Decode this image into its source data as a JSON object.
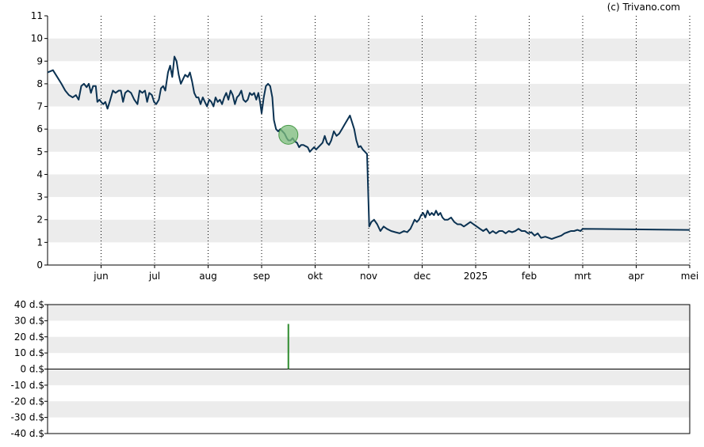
{
  "credit": "(c) Trivano.com",
  "colors": {
    "price_line": "#0b3252",
    "band": "#ececec",
    "grid": "#000000",
    "marker_fill": "#7fbf7f",
    "marker_stroke": "#4a9a4a",
    "bar": "#2e8b2e"
  },
  "chart_data": [
    {
      "type": "line",
      "name": "price",
      "ylim": [
        0,
        11
      ],
      "yticks": [
        "0",
        "1",
        "2",
        "3",
        "4",
        "5",
        "6",
        "7",
        "8",
        "9",
        "10",
        "11"
      ],
      "xlim": [
        0,
        12
      ],
      "xticks": [
        {
          "label": "jun",
          "x": 1
        },
        {
          "label": "jul",
          "x": 2
        },
        {
          "label": "aug",
          "x": 3
        },
        {
          "label": "sep",
          "x": 4
        },
        {
          "label": "okt",
          "x": 5
        },
        {
          "label": "nov",
          "x": 6
        },
        {
          "label": "dec",
          "x": 7
        },
        {
          "label": "2025",
          "x": 8
        },
        {
          "label": "feb",
          "x": 9
        },
        {
          "label": "mrt",
          "x": 10
        },
        {
          "label": "apr",
          "x": 11
        },
        {
          "label": "mei",
          "x": 12
        }
      ],
      "grid": "vertical dotted lines at month ticks, alternating horizontal bands",
      "series": [
        {
          "points": [
            [
              0.0,
              8.5
            ],
            [
              0.1,
              8.6
            ],
            [
              0.18,
              8.3
            ],
            [
              0.26,
              8.0
            ],
            [
              0.33,
              7.7
            ],
            [
              0.4,
              7.5
            ],
            [
              0.47,
              7.4
            ],
            [
              0.53,
              7.5
            ],
            [
              0.58,
              7.3
            ],
            [
              0.63,
              7.9
            ],
            [
              0.68,
              8.0
            ],
            [
              0.73,
              7.85
            ],
            [
              0.77,
              8.0
            ],
            [
              0.81,
              7.6
            ],
            [
              0.85,
              7.9
            ],
            [
              0.9,
              7.9
            ],
            [
              0.93,
              7.2
            ],
            [
              0.97,
              7.3
            ],
            [
              1.0,
              7.2
            ],
            [
              1.04,
              7.1
            ],
            [
              1.08,
              7.2
            ],
            [
              1.12,
              6.9
            ],
            [
              1.16,
              7.2
            ],
            [
              1.22,
              7.7
            ],
            [
              1.27,
              7.6
            ],
            [
              1.33,
              7.7
            ],
            [
              1.37,
              7.7
            ],
            [
              1.41,
              7.2
            ],
            [
              1.45,
              7.6
            ],
            [
              1.5,
              7.7
            ],
            [
              1.56,
              7.6
            ],
            [
              1.62,
              7.3
            ],
            [
              1.68,
              7.1
            ],
            [
              1.72,
              7.7
            ],
            [
              1.77,
              7.6
            ],
            [
              1.82,
              7.7
            ],
            [
              1.86,
              7.2
            ],
            [
              1.9,
              7.6
            ],
            [
              1.95,
              7.5
            ],
            [
              1.99,
              7.2
            ],
            [
              2.03,
              7.1
            ],
            [
              2.08,
              7.3
            ],
            [
              2.12,
              7.8
            ],
            [
              2.16,
              7.9
            ],
            [
              2.2,
              7.7
            ],
            [
              2.25,
              8.5
            ],
            [
              2.29,
              8.8
            ],
            [
              2.33,
              8.3
            ],
            [
              2.37,
              9.2
            ],
            [
              2.41,
              9.0
            ],
            [
              2.45,
              8.4
            ],
            [
              2.49,
              8.0
            ],
            [
              2.53,
              8.2
            ],
            [
              2.57,
              8.4
            ],
            [
              2.62,
              8.3
            ],
            [
              2.66,
              8.5
            ],
            [
              2.7,
              8.1
            ],
            [
              2.74,
              7.6
            ],
            [
              2.78,
              7.4
            ],
            [
              2.82,
              7.4
            ],
            [
              2.86,
              7.1
            ],
            [
              2.9,
              7.4
            ],
            [
              2.94,
              7.2
            ],
            [
              2.98,
              7.0
            ],
            [
              3.02,
              7.3
            ],
            [
              3.06,
              7.2
            ],
            [
              3.1,
              7.0
            ],
            [
              3.14,
              7.4
            ],
            [
              3.18,
              7.2
            ],
            [
              3.22,
              7.3
            ],
            [
              3.26,
              7.1
            ],
            [
              3.3,
              7.4
            ],
            [
              3.34,
              7.6
            ],
            [
              3.38,
              7.3
            ],
            [
              3.42,
              7.7
            ],
            [
              3.46,
              7.5
            ],
            [
              3.5,
              7.1
            ],
            [
              3.54,
              7.4
            ],
            [
              3.58,
              7.5
            ],
            [
              3.62,
              7.7
            ],
            [
              3.66,
              7.3
            ],
            [
              3.7,
              7.2
            ],
            [
              3.74,
              7.3
            ],
            [
              3.78,
              7.6
            ],
            [
              3.82,
              7.5
            ],
            [
              3.86,
              7.6
            ],
            [
              3.9,
              7.3
            ],
            [
              3.94,
              7.6
            ],
            [
              3.97,
              7.2
            ],
            [
              4.0,
              6.7
            ],
            [
              4.04,
              7.4
            ],
            [
              4.08,
              7.9
            ],
            [
              4.12,
              8.0
            ],
            [
              4.16,
              7.9
            ],
            [
              4.2,
              7.4
            ],
            [
              4.23,
              6.4
            ],
            [
              4.27,
              6.0
            ],
            [
              4.31,
              5.9
            ],
            [
              4.35,
              6.0
            ],
            [
              4.39,
              5.9
            ],
            [
              4.43,
              5.8
            ],
            [
              4.47,
              5.6
            ],
            [
              4.5,
              5.5
            ],
            [
              4.54,
              5.5
            ],
            [
              4.58,
              5.6
            ],
            [
              4.62,
              5.45
            ],
            [
              4.66,
              5.4
            ],
            [
              4.7,
              5.2
            ],
            [
              4.74,
              5.3
            ],
            [
              4.78,
              5.3
            ],
            [
              4.82,
              5.25
            ],
            [
              4.86,
              5.2
            ],
            [
              4.9,
              5.0
            ],
            [
              4.94,
              5.1
            ],
            [
              4.98,
              5.2
            ],
            [
              5.02,
              5.1
            ],
            [
              5.06,
              5.2
            ],
            [
              5.1,
              5.3
            ],
            [
              5.14,
              5.4
            ],
            [
              5.18,
              5.7
            ],
            [
              5.22,
              5.4
            ],
            [
              5.26,
              5.3
            ],
            [
              5.3,
              5.5
            ],
            [
              5.35,
              5.9
            ],
            [
              5.4,
              5.7
            ],
            [
              5.45,
              5.8
            ],
            [
              5.5,
              6.0
            ],
            [
              5.55,
              6.2
            ],
            [
              5.6,
              6.4
            ],
            [
              5.65,
              6.6
            ],
            [
              5.69,
              6.3
            ],
            [
              5.73,
              6.0
            ],
            [
              5.77,
              5.5
            ],
            [
              5.81,
              5.2
            ],
            [
              5.85,
              5.25
            ],
            [
              5.89,
              5.1
            ],
            [
              5.93,
              5.0
            ],
            [
              5.97,
              4.9
            ],
            [
              6.01,
              1.7
            ],
            [
              6.05,
              1.9
            ],
            [
              6.1,
              2.0
            ],
            [
              6.16,
              1.8
            ],
            [
              6.22,
              1.5
            ],
            [
              6.28,
              1.7
            ],
            [
              6.34,
              1.6
            ],
            [
              6.42,
              1.5
            ],
            [
              6.5,
              1.45
            ],
            [
              6.58,
              1.4
            ],
            [
              6.66,
              1.5
            ],
            [
              6.72,
              1.45
            ],
            [
              6.78,
              1.6
            ],
            [
              6.82,
              1.8
            ],
            [
              6.86,
              2.0
            ],
            [
              6.9,
              1.9
            ],
            [
              6.94,
              2.0
            ],
            [
              6.98,
              2.2
            ],
            [
              7.02,
              2.3
            ],
            [
              7.06,
              2.1
            ],
            [
              7.1,
              2.4
            ],
            [
              7.14,
              2.2
            ],
            [
              7.18,
              2.3
            ],
            [
              7.22,
              2.2
            ],
            [
              7.26,
              2.4
            ],
            [
              7.3,
              2.2
            ],
            [
              7.34,
              2.3
            ],
            [
              7.38,
              2.1
            ],
            [
              7.42,
              2.0
            ],
            [
              7.48,
              2.0
            ],
            [
              7.54,
              2.1
            ],
            [
              7.6,
              1.9
            ],
            [
              7.66,
              1.8
            ],
            [
              7.72,
              1.8
            ],
            [
              7.78,
              1.7
            ],
            [
              7.84,
              1.8
            ],
            [
              7.9,
              1.9
            ],
            [
              7.96,
              1.8
            ],
            [
              8.02,
              1.7
            ],
            [
              8.08,
              1.6
            ],
            [
              8.14,
              1.5
            ],
            [
              8.2,
              1.6
            ],
            [
              8.26,
              1.4
            ],
            [
              8.32,
              1.5
            ],
            [
              8.38,
              1.4
            ],
            [
              8.44,
              1.5
            ],
            [
              8.5,
              1.5
            ],
            [
              8.56,
              1.4
            ],
            [
              8.62,
              1.5
            ],
            [
              8.68,
              1.45
            ],
            [
              8.74,
              1.5
            ],
            [
              8.8,
              1.6
            ],
            [
              8.86,
              1.5
            ],
            [
              8.92,
              1.5
            ],
            [
              8.98,
              1.4
            ],
            [
              9.04,
              1.45
            ],
            [
              9.1,
              1.3
            ],
            [
              9.16,
              1.4
            ],
            [
              9.22,
              1.2
            ],
            [
              9.3,
              1.25
            ],
            [
              9.36,
              1.2
            ],
            [
              9.42,
              1.15
            ],
            [
              9.48,
              1.2
            ],
            [
              9.54,
              1.25
            ],
            [
              9.6,
              1.3
            ],
            [
              9.66,
              1.4
            ],
            [
              9.72,
              1.45
            ],
            [
              9.78,
              1.5
            ],
            [
              9.84,
              1.5
            ],
            [
              9.9,
              1.55
            ],
            [
              9.96,
              1.5
            ],
            [
              10.0,
              1.6
            ],
            [
              12.0,
              1.55
            ]
          ]
        }
      ],
      "marker": {
        "x": 4.5,
        "y": 5.75
      }
    },
    {
      "type": "bar",
      "name": "dividend",
      "ylim": [
        -40,
        40
      ],
      "yticks": [
        "-40 d.$",
        "-30 d.$",
        "-20 d.$",
        "-10 d.$",
        "0 d.$",
        "10 d.$",
        "20 d.$",
        "30 d.$",
        "40 d.$"
      ],
      "xlim": [
        0,
        12
      ],
      "bars": [
        {
          "x": 4.5,
          "value": 28
        }
      ]
    }
  ]
}
